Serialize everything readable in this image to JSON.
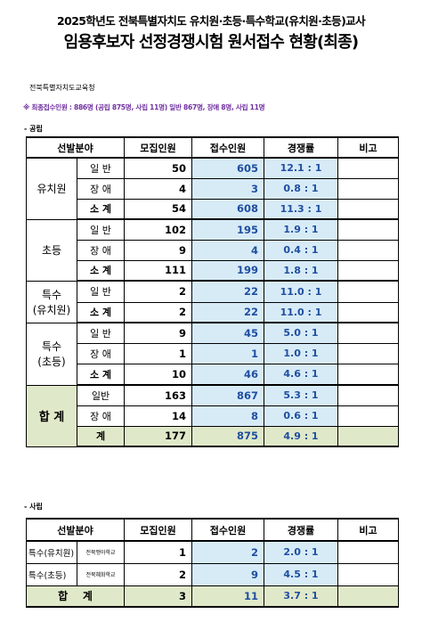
{
  "header": {
    "title_line1": "2025학년도 전북특별자치도 유치원·초등·특수학교(유치원·초등)교사",
    "title_line2": "임용후보자 선정경쟁시험 원서접수 현황(최종)",
    "agency": "전북특별자치도교육청",
    "summary": "※ 최종접수인원 : 886명 (공립 875명, 사립 11명)  일반 867명, 장애 8명, 사립 11명"
  },
  "public": {
    "section_label": "- 공립",
    "headers": [
      "선발분야",
      "모집인원",
      "접수인원",
      "경쟁률",
      "비고"
    ],
    "groups": [
      {
        "name": "유치원",
        "rows": [
          {
            "type": "일 반",
            "recruit": "50",
            "applied": "605",
            "ratio": "12.1 : 1"
          },
          {
            "type": "장 애",
            "recruit": "4",
            "applied": "3",
            "ratio": "0.8 : 1"
          },
          {
            "type": "소 계",
            "recruit": "54",
            "applied": "608",
            "ratio": "11.3 : 1"
          }
        ]
      },
      {
        "name": "초등",
        "rows": [
          {
            "type": "일 반",
            "recruit": "102",
            "applied": "195",
            "ratio": "1.9 : 1"
          },
          {
            "type": "장 애",
            "recruit": "9",
            "applied": "4",
            "ratio": "0.4 : 1"
          },
          {
            "type": "소 계",
            "recruit": "111",
            "applied": "199",
            "ratio": "1.8 : 1"
          }
        ]
      },
      {
        "name_l1": "특수",
        "name_l2": "(유치원)",
        "rows": [
          {
            "type": "일 반",
            "recruit": "2",
            "applied": "22",
            "ratio": "11.0 : 1"
          },
          {
            "type": "소 계",
            "recruit": "2",
            "applied": "22",
            "ratio": "11.0 : 1"
          }
        ]
      },
      {
        "name_l1": "특수",
        "name_l2": "(초등)",
        "rows": [
          {
            "type": "일 반",
            "recruit": "9",
            "applied": "45",
            "ratio": "5.0 : 1"
          },
          {
            "type": "장 애",
            "recruit": "1",
            "applied": "1",
            "ratio": "1.0 : 1"
          },
          {
            "type": "소 계",
            "recruit": "10",
            "applied": "46",
            "ratio": "4.6 : 1"
          }
        ]
      }
    ],
    "total": {
      "name": "합 계",
      "rows": [
        {
          "type": "일반",
          "recruit": "163",
          "applied": "867",
          "ratio": "5.3 : 1"
        },
        {
          "type": "장 애",
          "recruit": "14",
          "applied": "8",
          "ratio": "0.6 : 1"
        },
        {
          "type": "계",
          "recruit": "177",
          "applied": "875",
          "ratio": "4.9 : 1"
        }
      ]
    }
  },
  "private": {
    "section_label": "- 사립",
    "headers": [
      "선발분야",
      "모집인원",
      "접수인원",
      "경쟁률",
      "비고"
    ],
    "rows": [
      {
        "field": "특수(유치원)",
        "school": "전북맹아학교",
        "recruit": "1",
        "applied": "2",
        "ratio": "2.0 : 1"
      },
      {
        "field": "특수(초등)",
        "school": "전북혜화학교",
        "recruit": "2",
        "applied": "9",
        "ratio": "4.5 : 1"
      }
    ],
    "total": {
      "label": "합    계",
      "recruit": "3",
      "applied": "11",
      "ratio": "3.7 : 1"
    }
  }
}
